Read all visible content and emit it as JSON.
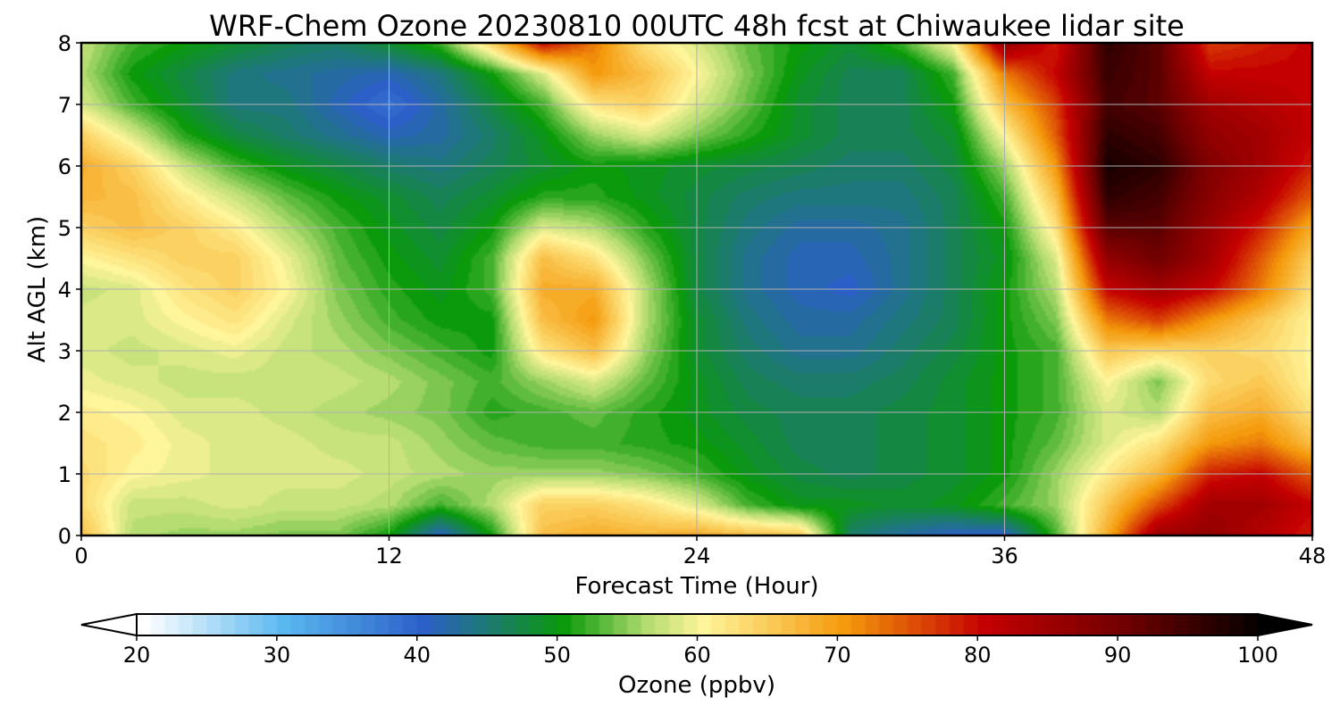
{
  "chart_data": {
    "type": "heatmap",
    "title": "WRF-Chem Ozone  20230810 00UTC 48h fcst at Chiwaukee lidar site",
    "xlabel": "Forecast Time (Hour)",
    "ylabel": "Alt AGL (km)",
    "xlim": [
      0,
      48
    ],
    "ylim": [
      0,
      8
    ],
    "x_ticks": [
      "0",
      "12",
      "24",
      "36",
      "48"
    ],
    "y_ticks": [
      "0",
      "1",
      "2",
      "3",
      "4",
      "5",
      "6",
      "7",
      "8"
    ],
    "grid": true,
    "colorbar": {
      "label": "Ozone  (ppbv)",
      "range": [
        20,
        100
      ],
      "extend": "both",
      "ticks": [
        "20",
        "30",
        "40",
        "50",
        "60",
        "70",
        "80",
        "90",
        "100"
      ],
      "stops": [
        {
          "value": 20,
          "color": "#ffffff"
        },
        {
          "value": 30,
          "color": "#5ab8f0"
        },
        {
          "value": 40,
          "color": "#2c5fc8"
        },
        {
          "value": 50,
          "color": "#0a9a0a"
        },
        {
          "value": 56,
          "color": "#b6dd72"
        },
        {
          "value": 60,
          "color": "#fff59a"
        },
        {
          "value": 70,
          "color": "#f59a0c"
        },
        {
          "value": 80,
          "color": "#c40000"
        },
        {
          "value": 90,
          "color": "#700000"
        },
        {
          "value": 100,
          "color": "#000000"
        }
      ]
    },
    "x": [
      0,
      2,
      4,
      6,
      8,
      10,
      12,
      14,
      16,
      18,
      20,
      22,
      24,
      26,
      28,
      30,
      32,
      34,
      36,
      38,
      40,
      42,
      44,
      46,
      48
    ],
    "y": [
      0,
      0.5,
      1,
      1.5,
      2,
      2.5,
      3,
      3.5,
      4,
      4.5,
      5,
      5.5,
      6,
      6.5,
      7,
      7.5,
      8
    ],
    "z": [
      [
        66,
        56,
        55,
        55,
        54,
        54,
        50,
        40,
        50,
        66,
        68,
        67,
        68,
        66,
        65,
        45,
        42,
        40,
        40,
        52,
        68,
        85,
        86,
        82,
        78
      ],
      [
        63,
        57,
        57,
        58,
        57,
        57,
        56,
        52,
        56,
        64,
        64,
        62,
        58,
        52,
        49,
        49,
        48,
        49,
        52,
        55,
        65,
        75,
        84,
        84,
        80
      ],
      [
        63,
        60,
        59,
        58,
        58,
        58,
        57,
        56,
        55,
        55,
        55,
        54,
        52,
        49,
        47,
        46,
        47,
        48,
        50,
        55,
        61,
        67,
        78,
        80,
        74
      ],
      [
        62,
        61,
        59,
        58,
        58,
        57,
        57,
        55,
        53,
        52,
        52,
        51,
        50,
        48,
        46,
        46,
        47,
        48,
        50,
        53,
        58,
        62,
        70,
        72,
        66
      ],
      [
        61,
        60,
        58,
        58,
        57,
        56,
        55,
        54,
        51,
        52,
        53,
        51,
        49,
        47,
        46,
        46,
        47,
        48,
        50,
        52,
        58,
        56,
        66,
        68,
        62
      ],
      [
        59,
        58,
        57,
        57,
        57,
        57,
        56,
        54,
        52,
        55,
        58,
        53,
        49,
        46,
        45,
        45,
        46,
        48,
        50,
        52,
        60,
        54,
        63,
        65,
        60
      ],
      [
        58,
        57,
        58,
        59,
        57,
        56,
        54,
        52,
        50,
        62,
        66,
        55,
        48,
        45,
        43,
        43,
        45,
        47,
        50,
        52,
        65,
        63,
        64,
        63,
        60
      ],
      [
        58,
        58,
        60,
        62,
        58,
        55,
        52,
        50,
        50,
        66,
        70,
        56,
        48,
        44,
        42,
        42,
        44,
        46,
        50,
        54,
        72,
        76,
        70,
        65,
        60
      ],
      [
        57,
        58,
        62,
        64,
        60,
        54,
        51,
        49,
        52,
        68,
        68,
        56,
        47,
        43,
        41,
        40,
        43,
        46,
        50,
        56,
        80,
        84,
        80,
        72,
        62
      ],
      [
        60,
        62,
        64,
        64,
        59,
        53,
        50,
        48,
        52,
        66,
        62,
        54,
        47,
        43,
        41,
        41,
        43,
        46,
        49,
        58,
        86,
        90,
        84,
        74,
        64
      ],
      [
        64,
        66,
        64,
        61,
        56,
        52,
        49,
        47,
        50,
        58,
        56,
        51,
        47,
        44,
        42,
        42,
        43,
        46,
        50,
        62,
        92,
        92,
        85,
        78,
        68
      ],
      [
        67,
        66,
        61,
        57,
        53,
        50,
        48,
        46,
        48,
        51,
        51,
        49,
        47,
        45,
        44,
        44,
        44,
        46,
        52,
        66,
        96,
        94,
        87,
        82,
        74
      ],
      [
        68,
        64,
        57,
        52,
        49,
        47,
        45,
        44,
        46,
        48,
        50,
        49,
        48,
        47,
        46,
        45,
        45,
        47,
        55,
        70,
        98,
        96,
        88,
        84,
        78
      ],
      [
        64,
        58,
        51,
        47,
        45,
        43,
        41,
        42,
        45,
        49,
        55,
        58,
        54,
        51,
        48,
        46,
        46,
        48,
        60,
        74,
        96,
        94,
        86,
        84,
        80
      ],
      [
        58,
        52,
        48,
        44,
        44,
        41,
        38,
        42,
        47,
        52,
        62,
        64,
        58,
        53,
        48,
        46,
        46,
        50,
        66,
        76,
        94,
        92,
        84,
        82,
        80
      ],
      [
        56,
        50,
        47,
        44,
        43,
        42,
        41,
        44,
        50,
        58,
        70,
        66,
        60,
        54,
        49,
        46,
        46,
        52,
        72,
        80,
        95,
        92,
        80,
        80,
        80
      ],
      [
        57,
        52,
        50,
        48,
        46,
        45,
        48,
        52,
        64,
        80,
        72,
        62,
        58,
        53,
        50,
        48,
        52,
        60,
        86,
        78,
        96,
        92,
        76,
        78,
        80
      ]
    ]
  }
}
